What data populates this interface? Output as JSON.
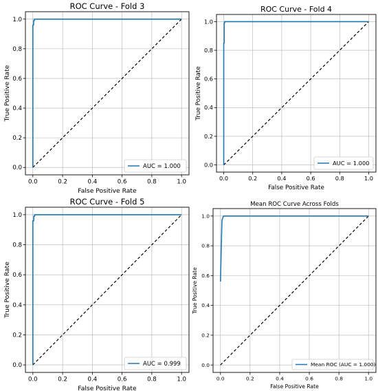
{
  "colors": {
    "roc": "#1f77b4",
    "diagonal": "#000000",
    "grid": "#b0b0b0",
    "axes": "#000000",
    "legend_border": "#cccccc"
  },
  "chart_data": [
    {
      "type": "line",
      "title": "ROC Curve - Fold 3",
      "xlabel": "False Positive Rate",
      "ylabel": "True Positive Rate",
      "xlim": [
        -0.05,
        1.05
      ],
      "ylim": [
        -0.05,
        1.05
      ],
      "xticks": [
        "0.0",
        "0.2",
        "0.4",
        "0.6",
        "0.8",
        "1.0"
      ],
      "yticks": [
        "0.0",
        "0.2",
        "0.4",
        "0.6",
        "0.8",
        "1.0"
      ],
      "grid": true,
      "legend_position": "lower-right",
      "series": [
        {
          "name": "AUC = 1.000",
          "x": [
            0.0,
            0.0,
            0.005,
            0.005,
            0.01,
            0.01,
            1.0
          ],
          "y": [
            0.0,
            0.96,
            0.96,
            0.99,
            0.99,
            1.0,
            1.0
          ]
        }
      ],
      "diagonal": {
        "x": [
          0,
          1
        ],
        "y": [
          0,
          1
        ],
        "style": "dashed"
      }
    },
    {
      "type": "line",
      "title": "ROC Curve - Fold 4",
      "xlabel": "False Positive Rate",
      "ylabel": "True Positive Rate",
      "xlim": [
        -0.05,
        1.05
      ],
      "ylim": [
        -0.05,
        1.05
      ],
      "xticks": [
        "0.0",
        "0.2",
        "0.4",
        "0.6",
        "0.8",
        "1.0"
      ],
      "yticks": [
        "0.0",
        "0.2",
        "0.4",
        "0.6",
        "0.8",
        "1.0"
      ],
      "grid": true,
      "legend_position": "lower-right",
      "series": [
        {
          "name": "AUC = 1.000",
          "x": [
            0.0,
            0.0,
            0.003,
            0.003,
            0.006,
            0.006,
            1.0
          ],
          "y": [
            0.0,
            0.85,
            0.85,
            0.99,
            0.99,
            1.0,
            1.0
          ]
        }
      ],
      "diagonal": {
        "x": [
          0,
          1
        ],
        "y": [
          0,
          1
        ],
        "style": "dashed"
      }
    },
    {
      "type": "line",
      "title": "ROC Curve - Fold 5",
      "xlabel": "False Positive Rate",
      "ylabel": "True Positive Rate",
      "xlim": [
        -0.05,
        1.05
      ],
      "ylim": [
        -0.05,
        1.05
      ],
      "xticks": [
        "0.0",
        "0.2",
        "0.4",
        "0.6",
        "0.8",
        "1.0"
      ],
      "yticks": [
        "0.0",
        "0.2",
        "0.4",
        "0.6",
        "0.8",
        "1.0"
      ],
      "grid": true,
      "legend_position": "lower-right",
      "series": [
        {
          "name": "AUC = 0.999",
          "x": [
            0.0,
            0.0,
            0.006,
            0.006,
            0.012,
            0.012,
            1.0
          ],
          "y": [
            0.0,
            0.96,
            0.96,
            0.99,
            0.99,
            1.0,
            1.0
          ]
        }
      ],
      "diagonal": {
        "x": [
          0,
          1
        ],
        "y": [
          0,
          1
        ],
        "style": "dashed"
      }
    },
    {
      "type": "line",
      "title": "Mean ROC Curve Across Folds",
      "xlabel": "False Positive Rate",
      "ylabel": "True Positive Rate",
      "xlim": [
        -0.05,
        1.05
      ],
      "ylim": [
        -0.05,
        1.05
      ],
      "xticks": [
        "0.0",
        "0.2",
        "0.4",
        "0.6",
        "0.8",
        "1.0"
      ],
      "yticks": [
        "0.0",
        "0.2",
        "0.4",
        "0.6",
        "0.8",
        "1.0"
      ],
      "grid": true,
      "legend_position": "lower-right",
      "series": [
        {
          "name": "Mean ROC (AUC = 1.000)",
          "x": [
            0.0,
            0.01,
            0.02,
            0.04,
            0.06,
            0.1,
            0.2,
            0.5,
            1.0
          ],
          "y": [
            0.56,
            0.97,
            1.0,
            1.0,
            1.0,
            1.0,
            1.0,
            1.0,
            1.0
          ]
        }
      ],
      "diagonal": {
        "x": [
          0,
          1
        ],
        "y": [
          0,
          1
        ],
        "style": "dashed"
      }
    }
  ]
}
